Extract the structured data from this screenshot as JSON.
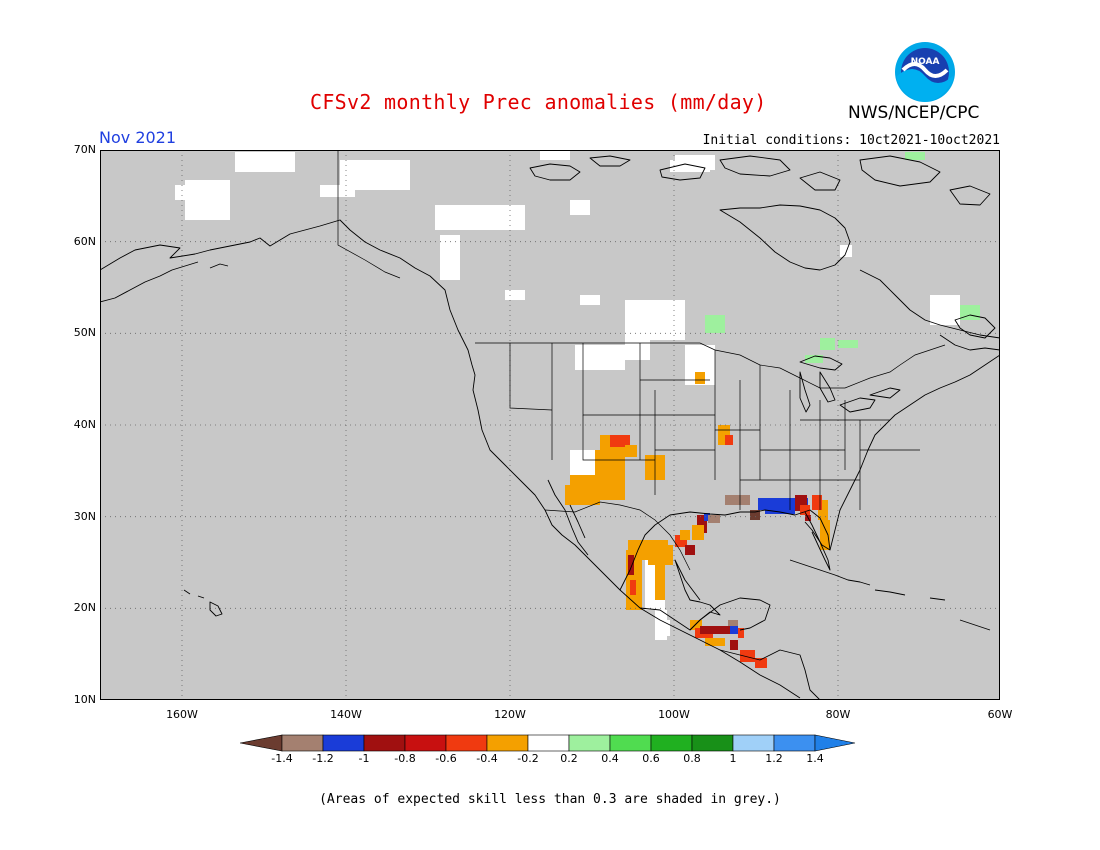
{
  "header": {
    "title": "CFSv2 monthly Prec anomalies (mm/day)",
    "agency": "NWS/NCEP/CPC",
    "month": "Nov 2021",
    "initial_conditions": "Initial conditions: 10ct2021-10oct2021",
    "logo_text": "NOAA"
  },
  "map": {
    "lat_labels": [
      "70N",
      "60N",
      "50N",
      "40N",
      "30N",
      "20N",
      "10N"
    ],
    "lon_labels": [
      "160W",
      "140W",
      "120W",
      "100W",
      "80W",
      "60W"
    ],
    "background_color": "#c8c8c8",
    "coast_color": "#000000",
    "projection": "lat-lon",
    "lon_range": [
      -170,
      -60
    ],
    "lat_range": [
      10,
      70
    ],
    "gridlines": "dotted"
  },
  "colorbar": {
    "labels": [
      "-1.4",
      "-1.2",
      "-1",
      "-0.8",
      "-0.6",
      "-0.4",
      "-0.2",
      "0.2",
      "0.4",
      "0.6",
      "0.8",
      "1",
      "1.2",
      "1.4"
    ],
    "colors": [
      "#6b3c30",
      "#a48070",
      "#1a3cd8",
      "#a01010",
      "#c81010",
      "#f03a10",
      "#f4a000",
      "#ffffff",
      "#9ef09e",
      "#50dc50",
      "#20b020",
      "#189018",
      "#a0d0f8",
      "#3c90f0",
      "#2080e8"
    ]
  },
  "footnote": "(Areas of expected skill less than 0.3 are shaded in grey.)"
}
